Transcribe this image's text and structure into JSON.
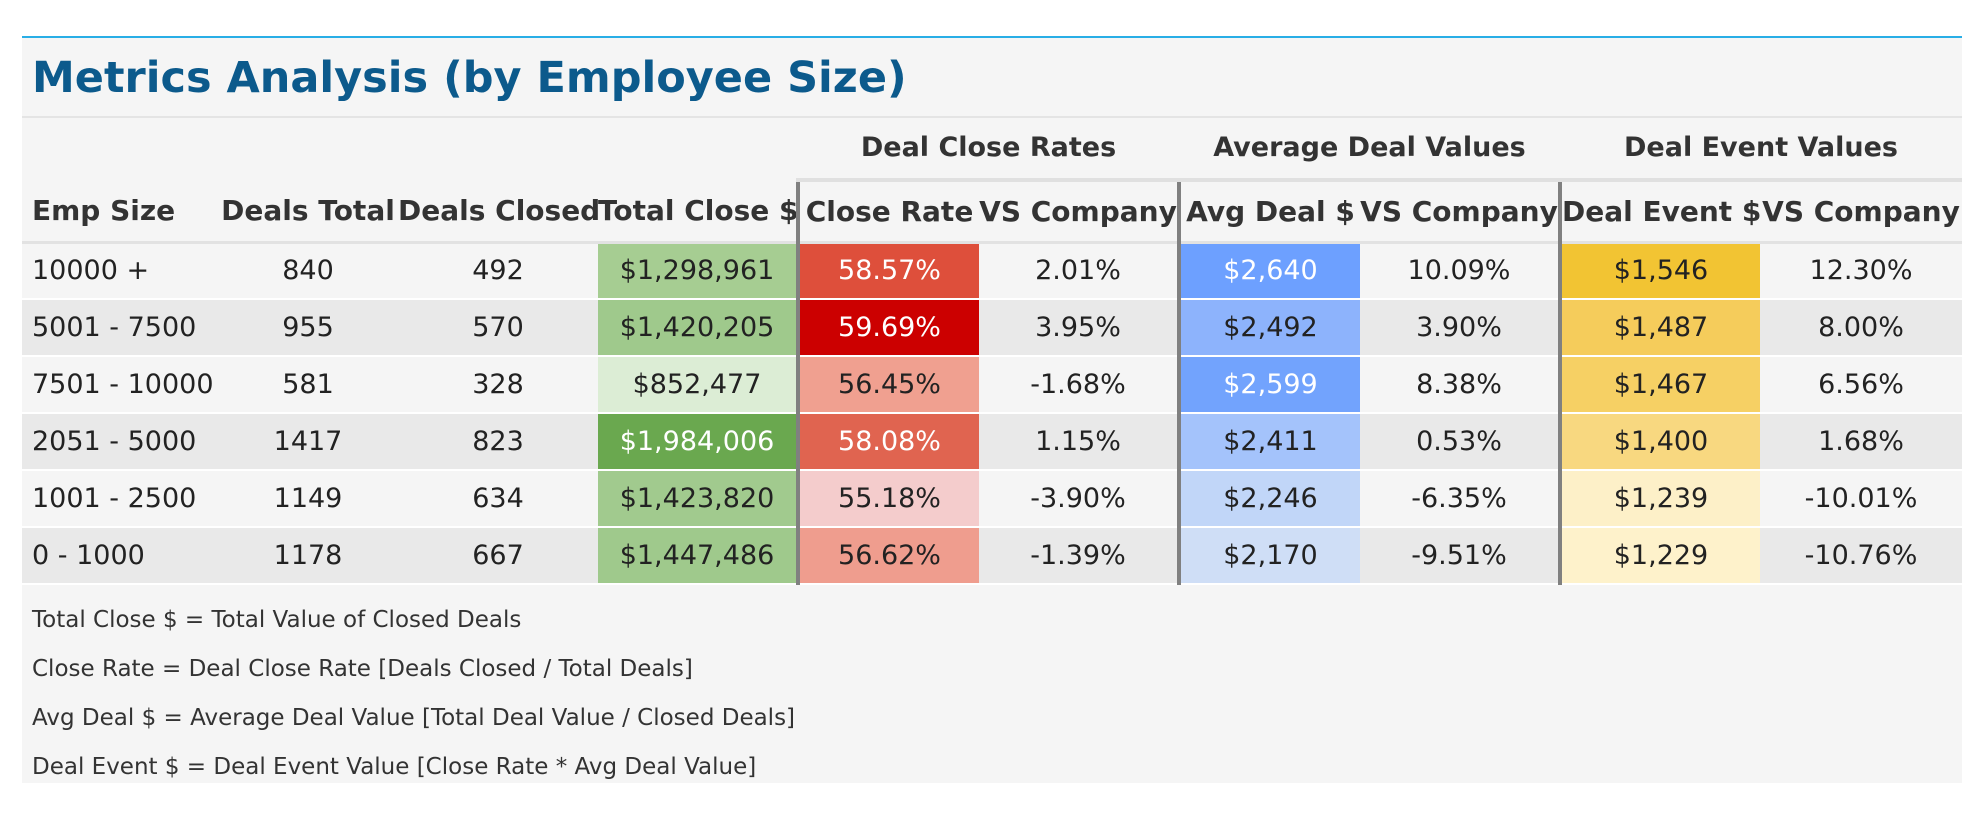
{
  "title": "Metrics Analysis (by Employee Size)",
  "groups": {
    "close_rates": "Deal Close Rates",
    "avg_values": "Average Deal Values",
    "event_values": "Deal Event Values"
  },
  "columns": {
    "emp_size": "Emp Size",
    "deals_total": "Deals Total",
    "deals_closed": "Deals Closed",
    "total_close": "Total Close $",
    "close_rate": "Close Rate",
    "close_vs": "VS Company",
    "avg_deal": "Avg Deal $",
    "avg_vs": "VS Company",
    "deal_event": "Deal Event $",
    "event_vs": "VS Company"
  },
  "colors": {
    "title": "#0c5a8c",
    "accent_rule": "#29aee6"
  },
  "rows": [
    {
      "emp_size": "10000 +",
      "deals_total": "840",
      "deals_closed": "492",
      "total_close": "$1,298,961",
      "close_rate": "58.57%",
      "close_vs": "2.01%",
      "avg_deal": "$2,640",
      "avg_vs": "10.09%",
      "deal_event": "$1,546",
      "event_vs": "12.30%",
      "colors": {
        "total_close": "#a6cd92",
        "close_rate": "#de4f3b",
        "avg_deal": "#6da0ff",
        "deal_event": "#f2c433"
      },
      "text_colors": {
        "close_rate": "#ffffff",
        "avg_deal": "#ffffff"
      }
    },
    {
      "emp_size": "5001 - 7500",
      "deals_total": "955",
      "deals_closed": "570",
      "total_close": "$1,420,205",
      "close_rate": "59.69%",
      "close_vs": "3.95%",
      "avg_deal": "$2,492",
      "avg_vs": "3.90%",
      "deal_event": "$1,487",
      "event_vs": "8.00%",
      "colors": {
        "total_close": "#9fc98c",
        "close_rate": "#cc0000",
        "avg_deal": "#8db3fc",
        "deal_event": "#f5cc5b"
      },
      "text_colors": {
        "close_rate": "#ffffff",
        "avg_deal": "#222222"
      }
    },
    {
      "emp_size": "7501 - 10000",
      "deals_total": "581",
      "deals_closed": "328",
      "total_close": "$852,477",
      "close_rate": "56.45%",
      "close_vs": "-1.68%",
      "avg_deal": "$2,599",
      "avg_vs": "8.38%",
      "deal_event": "$1,467",
      "event_vs": "6.56%",
      "colors": {
        "total_close": "#dcedd5",
        "close_rate": "#f0a090",
        "avg_deal": "#72a3fd",
        "deal_event": "#f6d064"
      },
      "text_colors": {
        "close_rate": "#222222",
        "avg_deal": "#ffffff"
      }
    },
    {
      "emp_size": "2051 - 5000",
      "deals_total": "1417",
      "deals_closed": "823",
      "total_close": "$1,984,006",
      "close_rate": "58.08%",
      "close_vs": "1.15%",
      "avg_deal": "$2,411",
      "avg_vs": "0.53%",
      "deal_event": "$1,400",
      "event_vs": "1.68%",
      "colors": {
        "total_close": "#6aa84f",
        "close_rate": "#e06450",
        "avg_deal": "#a4c3fb",
        "deal_event": "#f8d880"
      },
      "text_colors": {
        "total_close": "#ffffff",
        "close_rate": "#ffffff",
        "avg_deal": "#222222"
      }
    },
    {
      "emp_size": "1001 - 2500",
      "deals_total": "1149",
      "deals_closed": "634",
      "total_close": "$1,423,820",
      "close_rate": "55.18%",
      "close_vs": "-3.90%",
      "avg_deal": "$2,246",
      "avg_vs": "-6.35%",
      "deal_event": "$1,239",
      "event_vs": "-10.01%",
      "colors": {
        "total_close": "#a1ca8e",
        "close_rate": "#f4cccc",
        "avg_deal": "#c1d6f8",
        "deal_event": "#fdf0c8"
      },
      "text_colors": {
        "close_rate": "#222222",
        "avg_deal": "#222222"
      }
    },
    {
      "emp_size": "0 - 1000",
      "deals_total": "1178",
      "deals_closed": "667",
      "total_close": "$1,447,486",
      "close_rate": "56.62%",
      "close_vs": "-1.39%",
      "avg_deal": "$2,170",
      "avg_vs": "-9.51%",
      "deal_event": "$1,229",
      "event_vs": "-10.76%",
      "colors": {
        "total_close": "#9fc98c",
        "close_rate": "#ef9d8e",
        "avg_deal": "#cfdef6",
        "deal_event": "#fef2cb"
      },
      "text_colors": {
        "close_rate": "#222222",
        "avg_deal": "#222222"
      }
    }
  ],
  "notes": [
    "Total Close $ = Total Value of Closed Deals",
    "Close Rate = Deal Close Rate [Deals Closed / Total Deals]",
    "Avg Deal $ = Average Deal Value [Total Deal Value / Closed Deals]",
    "Deal Event $ = Deal Event Value [Close Rate * Avg Deal Value]"
  ]
}
